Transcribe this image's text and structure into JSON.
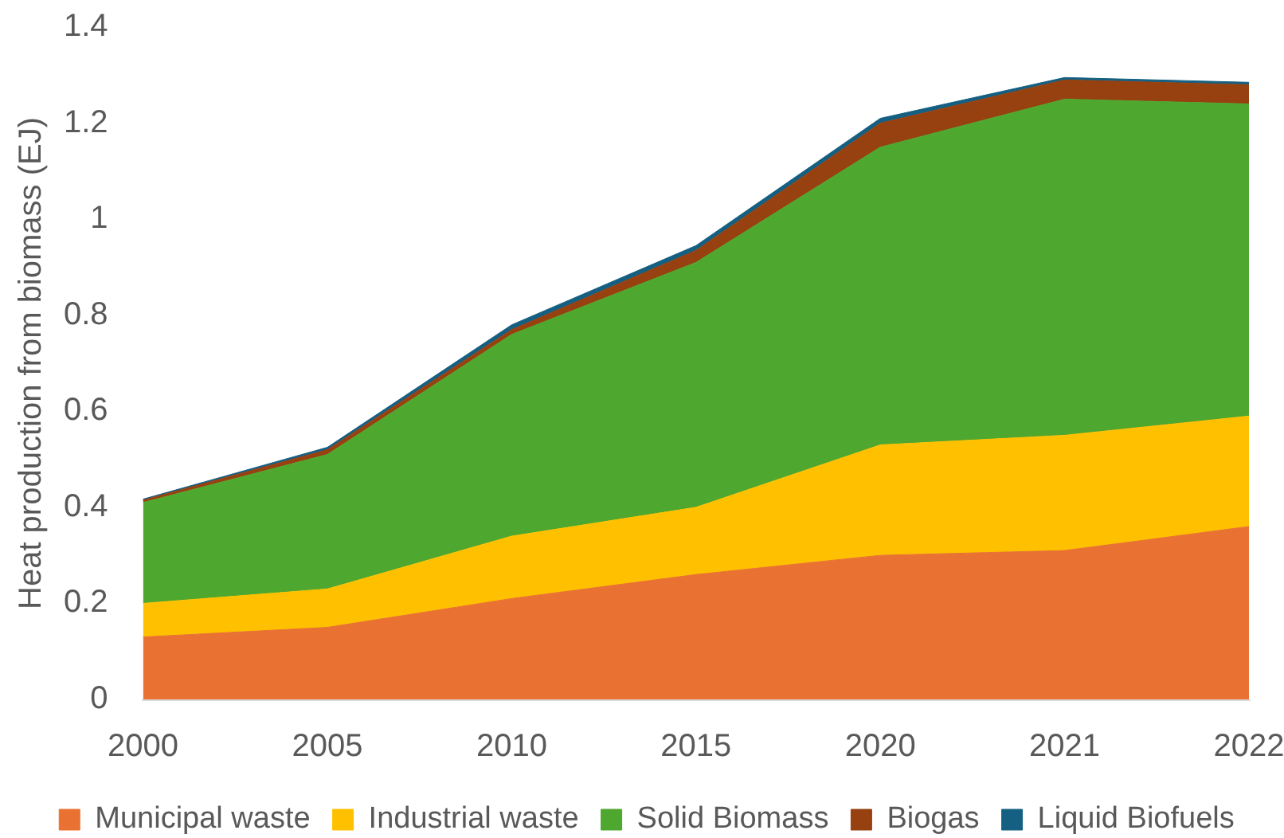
{
  "chart_data": {
    "type": "area",
    "stacked": true,
    "ylabel": "Heat production from biomass (EJ)",
    "legend": "bottom",
    "categories": [
      "2000",
      "2005",
      "2010",
      "2015",
      "2020",
      "2021",
      "2022"
    ],
    "ylim": [
      0,
      1.4
    ],
    "yticks": [
      0,
      0.2,
      0.4,
      0.6,
      0.8,
      1,
      1.2,
      1.4
    ],
    "series": [
      {
        "name": "Municipal waste",
        "color": "#e97132",
        "values": [
          0.13,
          0.15,
          0.21,
          0.26,
          0.3,
          0.31,
          0.36
        ]
      },
      {
        "name": "Industrial waste",
        "color": "#ffc000",
        "values": [
          0.07,
          0.08,
          0.13,
          0.14,
          0.23,
          0.24,
          0.23
        ]
      },
      {
        "name": "Solid Biomass",
        "color": "#4ea72e",
        "values": [
          0.21,
          0.28,
          0.42,
          0.51,
          0.62,
          0.7,
          0.65
        ]
      },
      {
        "name": "Biogas",
        "color": "#974010",
        "values": [
          0.005,
          0.01,
          0.01,
          0.025,
          0.05,
          0.04,
          0.04
        ]
      },
      {
        "name": "Liquid Biofuels",
        "color": "#156082",
        "values": [
          0.002,
          0.005,
          0.01,
          0.01,
          0.01,
          0.005,
          0.005
        ]
      }
    ]
  }
}
